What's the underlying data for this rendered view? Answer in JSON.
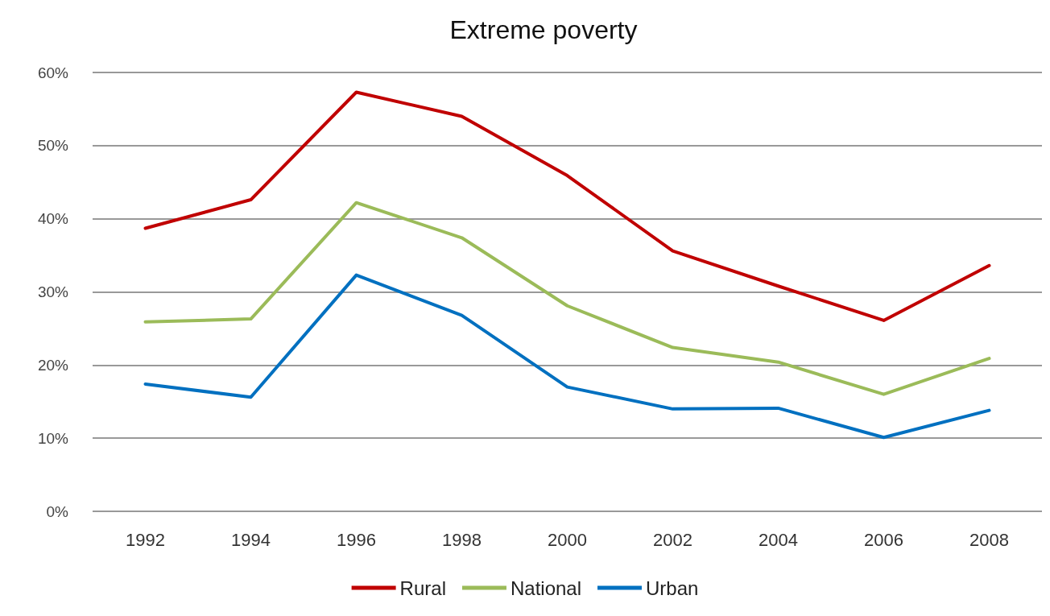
{
  "chart_data": {
    "type": "line",
    "title": "Extreme poverty",
    "categories": [
      "1992",
      "1994",
      "1996",
      "1998",
      "2000",
      "2002",
      "2004",
      "2006",
      "2008"
    ],
    "series": [
      {
        "name": "Rural",
        "color": "#c00000",
        "values": [
          38.7,
          42.6,
          57.3,
          54.0,
          45.9,
          35.6,
          30.8,
          26.1,
          33.6
        ]
      },
      {
        "name": "National",
        "color": "#9bbb59",
        "values": [
          25.9,
          26.3,
          42.2,
          37.4,
          28.1,
          22.4,
          20.4,
          16.0,
          20.9
        ]
      },
      {
        "name": "Urban",
        "color": "#0070c0",
        "values": [
          17.4,
          15.6,
          32.3,
          26.8,
          17.0,
          14.0,
          14.1,
          10.1,
          13.8
        ]
      }
    ],
    "ylim": [
      0,
      60
    ],
    "yticks": [
      {
        "value": 0,
        "label": "0%"
      },
      {
        "value": 10,
        "label": "10%"
      },
      {
        "value": 20,
        "label": "20%"
      },
      {
        "value": 30,
        "label": "30%"
      },
      {
        "value": 40,
        "label": "40%"
      },
      {
        "value": 50,
        "label": "50%"
      },
      {
        "value": 60,
        "label": "60%"
      }
    ],
    "grid": "y",
    "legend": "bottom",
    "marker": "none",
    "line_style": "solid"
  }
}
